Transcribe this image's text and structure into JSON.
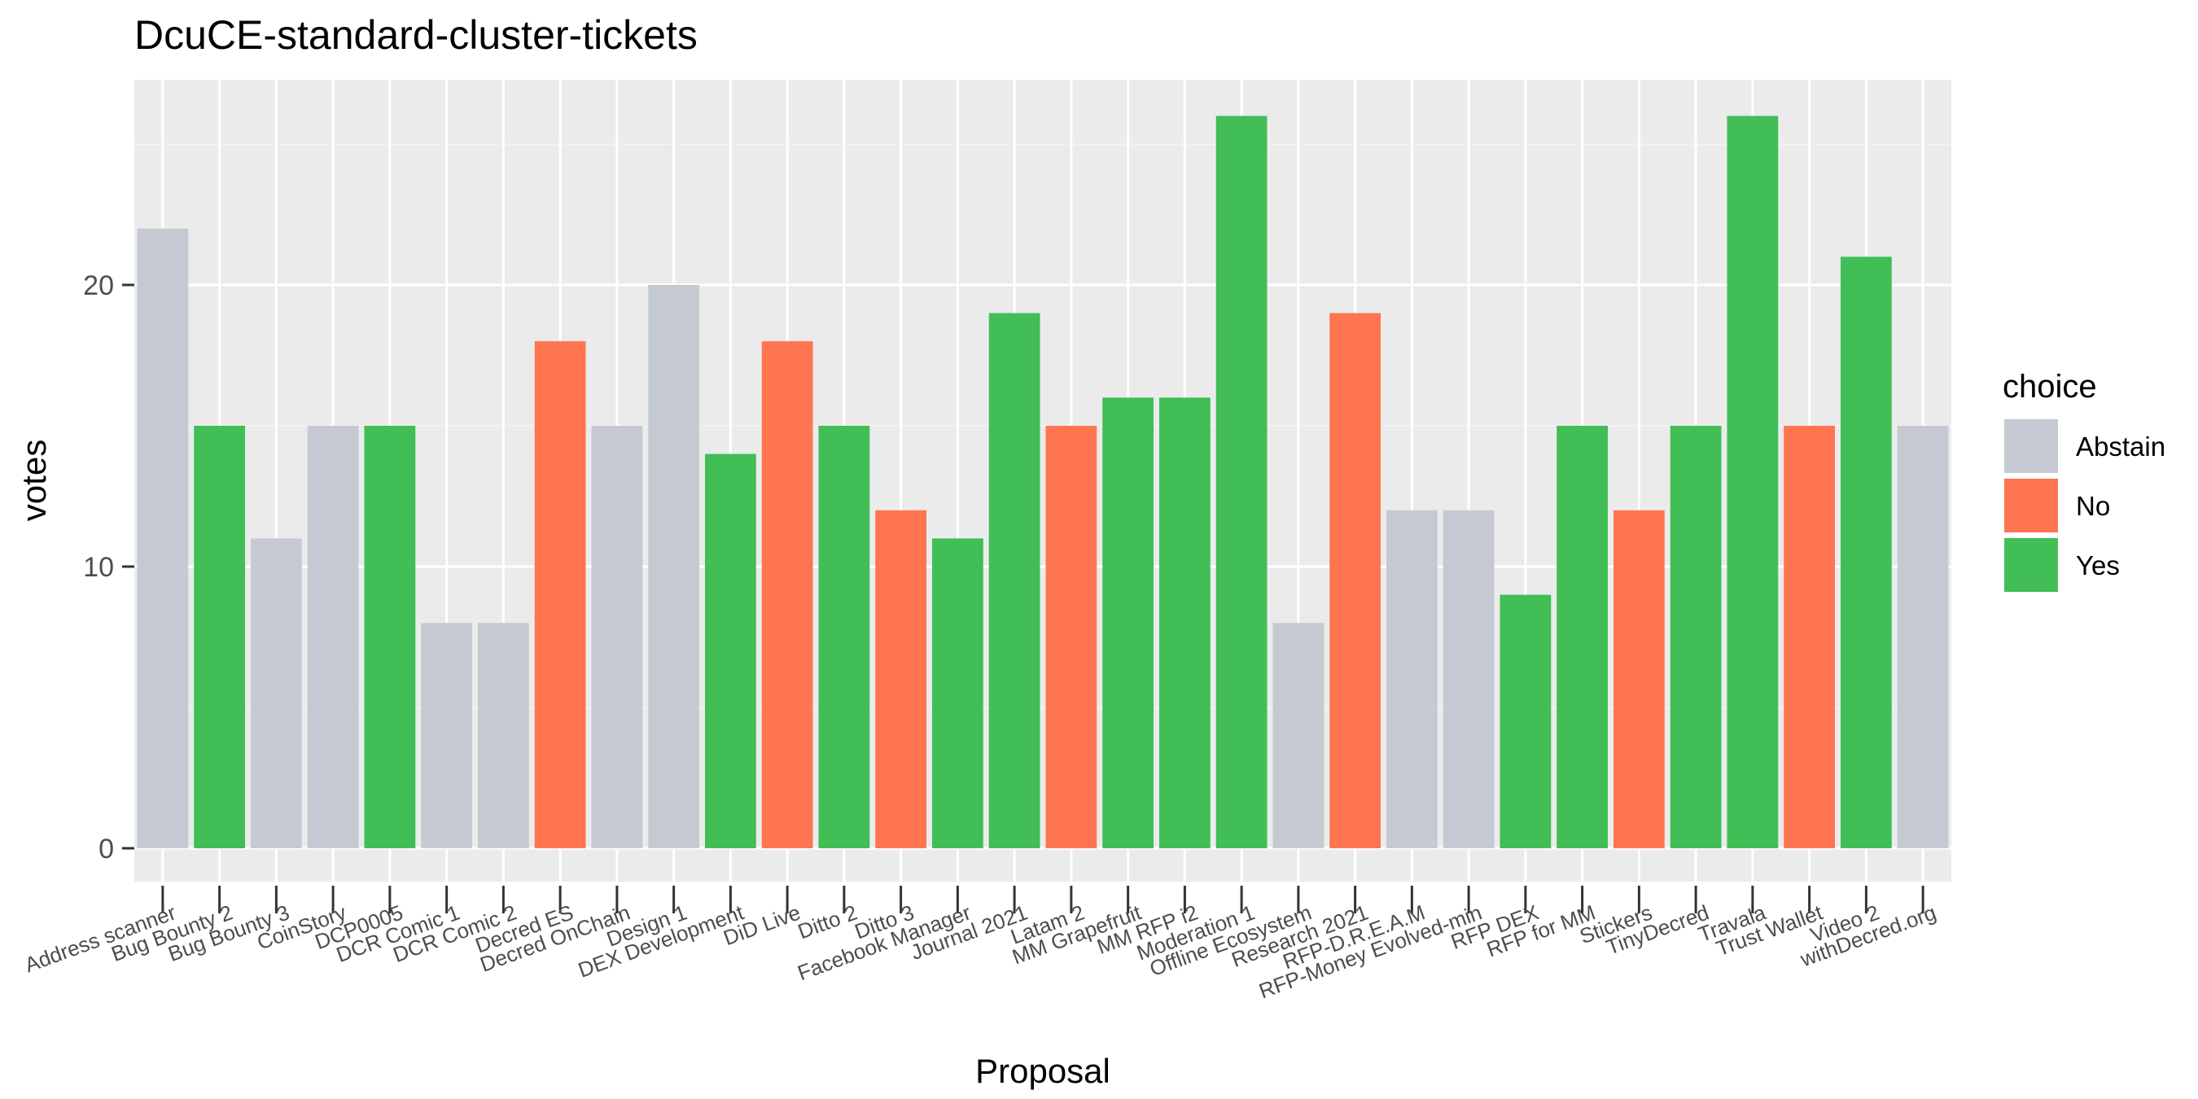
{
  "chart_data": {
    "type": "bar",
    "title": "DcuCE-standard-cluster-tickets",
    "xlabel": "Proposal",
    "ylabel": "votes",
    "ylim": [
      0,
      27.3
    ],
    "yticks": [
      0,
      10,
      20
    ],
    "grid": true,
    "legend": {
      "title": "choice",
      "position": "right",
      "entries": [
        {
          "label": "Abstain",
          "color": "#c5cad2"
        },
        {
          "label": "No",
          "color": "#ff7550"
        },
        {
          "label": "Yes",
          "color": "#41be55"
        }
      ]
    },
    "categories": [
      "Address scanner",
      "Bug Bounty 2",
      "Bug Bounty 3",
      "CoinStory",
      "DCP0005",
      "DCR Comic 1",
      "DCR Comic 2",
      "Decred ES",
      "Decred OnChain",
      "Design 1",
      "DEX Development",
      "DiD Live",
      "Ditto 2",
      "Ditto 3",
      "Facebook Manager",
      "Journal 2021",
      "Latam 2",
      "MM Grapefruit",
      "MM RFP i2",
      "Moderation 1",
      "Offline Ecosystem",
      "Research 2021",
      "RFP-D.R.E.A.M",
      "RFP-Money Evolved-min",
      "RFP DEX",
      "RFP for MM",
      "Stickers",
      "TinyDecred",
      "Travala",
      "Trust Wallet",
      "Video 2",
      "withDecred.org"
    ],
    "values": [
      22,
      15,
      11,
      15,
      15,
      8,
      8,
      18,
      15,
      20,
      14,
      18,
      15,
      12,
      11,
      19,
      15,
      16,
      16,
      26,
      8,
      19,
      12,
      12,
      9,
      15,
      12,
      15,
      26,
      15,
      21,
      15
    ],
    "choices": [
      "Abstain",
      "Yes",
      "Abstain",
      "Abstain",
      "Yes",
      "Abstain",
      "Abstain",
      "No",
      "Abstain",
      "Abstain",
      "Yes",
      "No",
      "Yes",
      "No",
      "Yes",
      "Yes",
      "No",
      "Yes",
      "Yes",
      "Yes",
      "Abstain",
      "No",
      "Abstain",
      "Abstain",
      "Yes",
      "Yes",
      "No",
      "Yes",
      "Yes",
      "No",
      "Yes",
      "Abstain"
    ]
  }
}
